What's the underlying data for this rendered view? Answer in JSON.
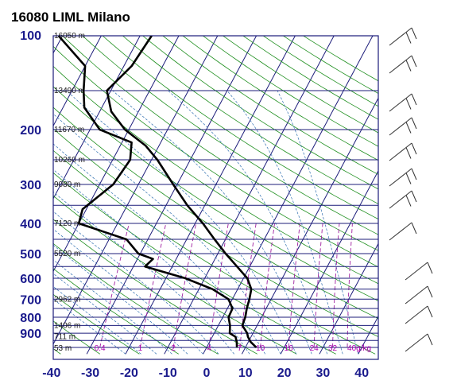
{
  "chart_data": {
    "type": "line",
    "title": "16080 LIML Milano",
    "x_ticks": [
      -40,
      -30,
      -20,
      -10,
      0,
      10,
      20,
      30,
      40
    ],
    "pressure_ticks": [
      100,
      200,
      300,
      400,
      500,
      600,
      700,
      800,
      900
    ],
    "xlim": [
      -40,
      45
    ],
    "ylim": [
      1000,
      100
    ],
    "height_labels": [
      {
        "p": 100,
        "text": "16050 m"
      },
      {
        "p": 150,
        "text": "13490 m"
      },
      {
        "p": 200,
        "text": "11670 m"
      },
      {
        "p": 250,
        "text": "10260 m"
      },
      {
        "p": 300,
        "text": "9080 m"
      },
      {
        "p": 400,
        "text": "7120 m"
      },
      {
        "p": 500,
        "text": "5520 m"
      },
      {
        "p": 700,
        "text": "2962 m"
      },
      {
        "p": 850,
        "text": "1406 m"
      },
      {
        "p": 925,
        "text": "711 m"
      },
      {
        "p": 1000,
        "text": "53 m"
      }
    ],
    "mixing_ratio_labels": [
      "0.4",
      "1",
      "2",
      "4",
      "7",
      "10",
      "16",
      "24",
      "32",
      "40g/kg"
    ],
    "mixing_ratios": [
      0.4,
      1,
      2,
      4,
      7,
      10,
      16,
      24,
      32,
      40
    ],
    "series": [
      {
        "role": "temperature",
        "points": [
          [
            1000,
            12.8
          ],
          [
            960,
            10.6
          ],
          [
            925,
            9.2
          ],
          [
            900,
            8.5
          ],
          [
            850,
            6.2
          ],
          [
            800,
            5.8
          ],
          [
            750,
            5.0
          ],
          [
            700,
            4.4
          ],
          [
            650,
            3.5
          ],
          [
            600,
            1.0
          ],
          [
            550,
            -3.3
          ],
          [
            500,
            -8.0
          ],
          [
            450,
            -12.8
          ],
          [
            400,
            -18.0
          ],
          [
            350,
            -24.5
          ],
          [
            300,
            -31.0
          ],
          [
            250,
            -38.5
          ],
          [
            225,
            -43.5
          ],
          [
            200,
            -51.0
          ],
          [
            175,
            -57.0
          ],
          [
            150,
            -61.0
          ],
          [
            125,
            -58.0
          ],
          [
            100,
            -57.0
          ]
        ]
      },
      {
        "role": "dewpoint",
        "points": [
          [
            1000,
            7.8
          ],
          [
            960,
            7.0
          ],
          [
            925,
            6.0
          ],
          [
            900,
            4.0
          ],
          [
            850,
            3.0
          ],
          [
            800,
            1.5
          ],
          [
            750,
            1.3
          ],
          [
            700,
            -1.0
          ],
          [
            650,
            -6.5
          ],
          [
            600,
            -15.0
          ],
          [
            550,
            -27.0
          ],
          [
            520,
            -26.0
          ],
          [
            500,
            -30.5
          ],
          [
            450,
            -35.5
          ],
          [
            400,
            -50.0
          ],
          [
            360,
            -51.0
          ],
          [
            300,
            -46.5
          ],
          [
            250,
            -45.5
          ],
          [
            220,
            -47.5
          ],
          [
            200,
            -57.5
          ],
          [
            170,
            -64.5
          ],
          [
            150,
            -67.0
          ],
          [
            125,
            -70.0
          ],
          [
            100,
            -81.0
          ]
        ]
      }
    ]
  }
}
